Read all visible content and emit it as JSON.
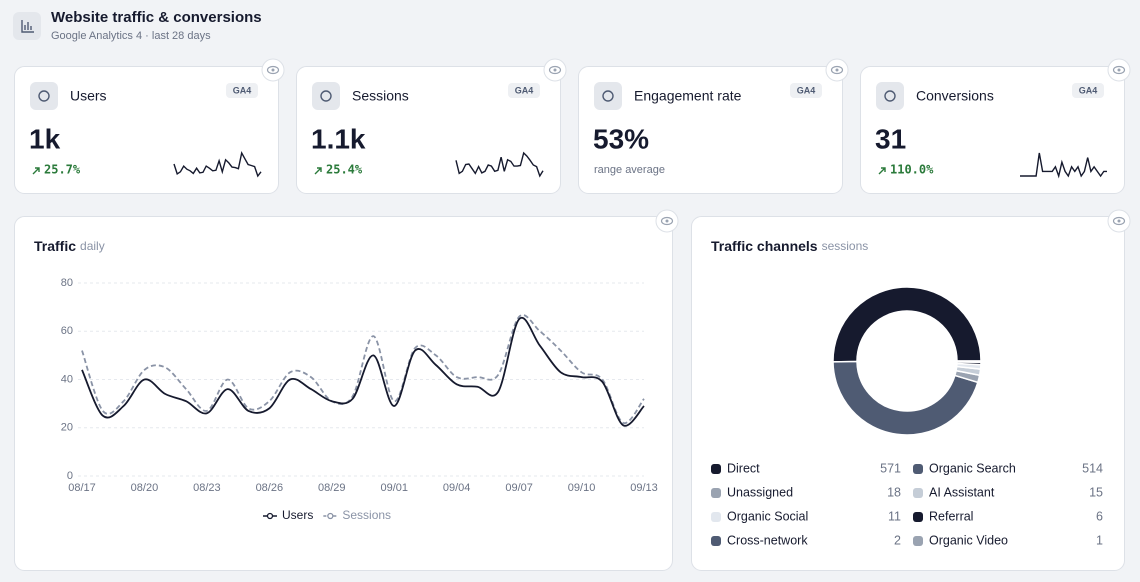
{
  "header": {
    "title": "Website traffic & conversions",
    "subtitle": "Google Analytics 4 · last 28 days"
  },
  "kpis": [
    {
      "label": "Users",
      "badge": "GA4",
      "value": "1k",
      "change": "25.7%"
    },
    {
      "label": "Sessions",
      "badge": "GA4",
      "value": "1.1k",
      "change": "25.4%"
    },
    {
      "label": "Engagement rate",
      "badge": "GA4",
      "value": "53%",
      "note": "range average"
    },
    {
      "label": "Conversions",
      "badge": "GA4",
      "value": "31",
      "change": "110.0%",
      "trend": [
        0,
        0,
        0,
        0,
        0,
        0,
        5,
        1,
        1,
        1,
        1,
        2,
        0,
        3,
        1,
        0,
        2,
        1,
        2,
        0,
        1,
        4,
        1,
        2,
        1,
        0,
        1,
        1
      ]
    }
  ],
  "chart_data": [
    {
      "type": "line",
      "title": "Traffic",
      "subtitle": "daily",
      "categories": [
        "08/17",
        null,
        null,
        "08/20",
        null,
        null,
        "08/23",
        null,
        null,
        "08/26",
        null,
        null,
        "08/29",
        null,
        null,
        "09/01",
        null,
        null,
        "09/04",
        null,
        null,
        "09/07",
        null,
        null,
        "09/10",
        null,
        null,
        "09/13"
      ],
      "series": [
        {
          "name": "Users",
          "color": "#161a2e",
          "dashed": false,
          "values": [
            44,
            25,
            29,
            40,
            34,
            31,
            26,
            36,
            27,
            28,
            40,
            36,
            31,
            32,
            50,
            29,
            52,
            46,
            38,
            37,
            35,
            65,
            54,
            43,
            41,
            39,
            21,
            29
          ]
        },
        {
          "name": "Sessions",
          "color": "#8a93a6",
          "dashed": true,
          "values": [
            52,
            27,
            31,
            44,
            45,
            36,
            27,
            40,
            28,
            31,
            43,
            41,
            31,
            33,
            58,
            31,
            53,
            50,
            41,
            41,
            42,
            66,
            60,
            52,
            43,
            40,
            22,
            32
          ]
        }
      ],
      "ylim": [
        0,
        80
      ],
      "yticks": [
        0,
        20,
        40,
        60,
        80
      ],
      "grid": true,
      "legend": "bottom"
    },
    {
      "type": "pie",
      "title": "Traffic channels",
      "subtitle": "sessions",
      "donut": true,
      "categories": [
        "Direct",
        "Organic Search",
        "Unassigned",
        "AI Assistant",
        "Organic Social",
        "Referral",
        "Cross-network",
        "Organic Video"
      ],
      "values": [
        571,
        514,
        18,
        15,
        11,
        6,
        2,
        1
      ],
      "colors": [
        "#161a2e",
        "#4f5b73",
        "#9aa3b1",
        "#c5cdd7",
        "#e2e7ee",
        "#161a2e",
        "#4f5b73",
        "#9aa3b1"
      ]
    }
  ]
}
